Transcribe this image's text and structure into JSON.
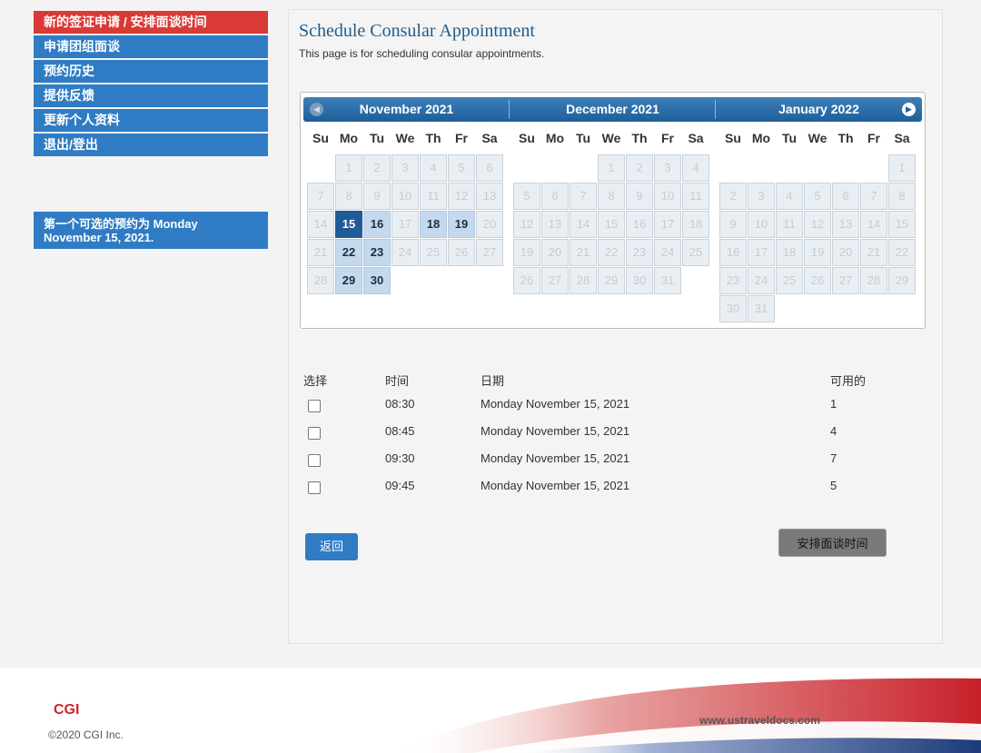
{
  "sidebar": {
    "items": [
      {
        "label": "新的签证申请 / 安排面谈时间",
        "active": true
      },
      {
        "label": "申请团组面谈",
        "active": false
      },
      {
        "label": "预约历史",
        "active": false
      },
      {
        "label": "提供反馈",
        "active": false
      },
      {
        "label": "更新个人资料",
        "active": false
      },
      {
        "label": "退出/登出",
        "active": false
      }
    ],
    "first_available": "第一个可选的预约为 Monday November 15, 2021."
  },
  "main": {
    "title": "Schedule Consular Appointment",
    "subtitle": "This page is for scheduling consular appointments."
  },
  "calendar": {
    "prev_icon": "chevron-left-icon",
    "next_icon": "chevron-right-icon",
    "weekdays": [
      "Su",
      "Mo",
      "Tu",
      "We",
      "Th",
      "Fr",
      "Sa"
    ],
    "months": [
      {
        "title": "November 2021",
        "start_offset": 1,
        "days": 30,
        "available": [
          16,
          18,
          19,
          22,
          23,
          29,
          30
        ],
        "selected": 15
      },
      {
        "title": "December 2021",
        "start_offset": 3,
        "days": 31,
        "available": [],
        "selected": null
      },
      {
        "title": "January 2022",
        "start_offset": 6,
        "days": 31,
        "available": [],
        "selected": null
      }
    ]
  },
  "slots": {
    "headers": {
      "select": "选择",
      "time": "时间",
      "date": "日期",
      "available": "可用的"
    },
    "rows": [
      {
        "time": "08:30",
        "date": "Monday November 15, 2021",
        "available": "1"
      },
      {
        "time": "08:45",
        "date": "Monday November 15, 2021",
        "available": "4"
      },
      {
        "time": "09:30",
        "date": "Monday November 15, 2021",
        "available": "7"
      },
      {
        "time": "09:45",
        "date": "Monday November 15, 2021",
        "available": "5"
      }
    ]
  },
  "buttons": {
    "back": "返回",
    "schedule": "安排面谈时间"
  },
  "footer": {
    "logo": "CGI",
    "copyright": "©2020 CGI Inc.",
    "url": "www.ustraveldocs.com"
  },
  "colors": {
    "nav_blue": "#2f7cc4",
    "nav_active_red": "#d93a35",
    "selected_day": "#1f5c96",
    "available_day": "#c5d9ee"
  }
}
